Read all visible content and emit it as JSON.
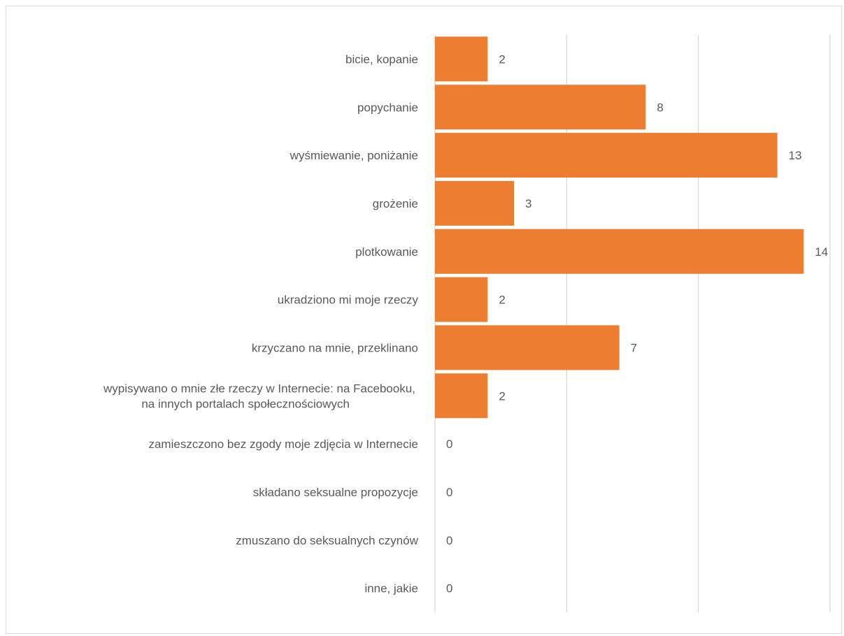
{
  "chart_data": {
    "type": "bar",
    "orientation": "horizontal",
    "categories": [
      "bicie, kopanie",
      "popychanie",
      "wyśmiewanie, poniżanie",
      "grożenie",
      "plotkowanie",
      "ukradziono mi moje rzeczy",
      "krzyczano na mnie, przeklinano",
      "wypisywano o mnie złe rzeczy w Internecie: na Facebooku, na innych portalach społecznościowych",
      "zamieszczono bez zgody moje zdjęcia w Internecie",
      "składano seksualne propozycje",
      "zmuszano do seksualnych czynów",
      "inne, jakie"
    ],
    "category_lines": [
      [
        "bicie, kopanie"
      ],
      [
        "popychanie"
      ],
      [
        "wyśmiewanie, poniżanie"
      ],
      [
        "grożenie"
      ],
      [
        "plotkowanie"
      ],
      [
        "ukradziono mi moje rzeczy"
      ],
      [
        "krzyczano na mnie, przeklinano"
      ],
      [
        "wypisywano o mnie złe rzeczy w Internecie: na Facebooku,",
        "na innych portalach społecznościowych"
      ],
      [
        "zamieszczono bez zgody moje zdjęcia w Internecie"
      ],
      [
        "składano seksualne propozycje"
      ],
      [
        "zmuszano do seksualnych czynów"
      ],
      [
        "inne, jakie"
      ]
    ],
    "values": [
      2,
      8,
      13,
      3,
      14,
      2,
      7,
      2,
      0,
      0,
      0,
      0
    ],
    "xlim": [
      0,
      15
    ],
    "gridlines": [
      0,
      5,
      10,
      15
    ],
    "grid": true,
    "legend": "none",
    "bar_color": "#ED7D31",
    "grid_color": "#D9D9D9",
    "text_color": "#595959"
  }
}
